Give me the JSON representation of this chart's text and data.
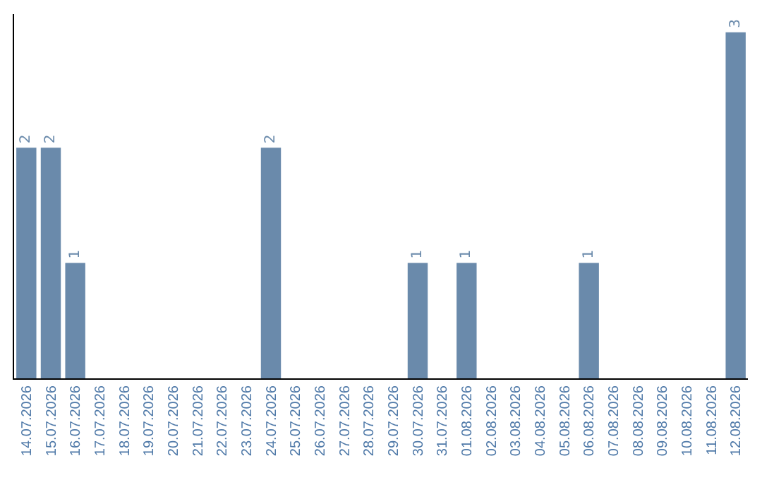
{
  "chart_data": {
    "type": "bar",
    "categories": [
      "14.07.2026",
      "15.07.2026",
      "16.07.2026",
      "17.07.2026",
      "18.07.2026",
      "19.07.2026",
      "20.07.2026",
      "21.07.2026",
      "22.07.2026",
      "23.07.2026",
      "24.07.2026",
      "25.07.2026",
      "26.07.2026",
      "27.07.2026",
      "28.07.2026",
      "29.07.2026",
      "30.07.2026",
      "31.07.2026",
      "01.08.2026",
      "02.08.2026",
      "03.08.2026",
      "04.08.2026",
      "05.08.2026",
      "06.08.2026",
      "07.08.2026",
      "08.08.2026",
      "09.08.2026",
      "10.08.2026",
      "11.08.2026",
      "12.08.2026"
    ],
    "values": [
      2,
      2,
      1,
      0,
      0,
      0,
      0,
      0,
      0,
      0,
      2,
      0,
      0,
      0,
      0,
      0,
      1,
      0,
      1,
      0,
      0,
      0,
      0,
      1,
      0,
      0,
      0,
      0,
      0,
      3
    ],
    "value_labels": [
      "2",
      "2",
      "1",
      null,
      null,
      null,
      null,
      null,
      null,
      null,
      "2",
      null,
      null,
      null,
      null,
      null,
      "1",
      null,
      "1",
      null,
      null,
      null,
      null,
      "1",
      null,
      null,
      null,
      null,
      null,
      "3"
    ],
    "color": "#6a8aab",
    "tick_labels": "x",
    "legend": false
  }
}
